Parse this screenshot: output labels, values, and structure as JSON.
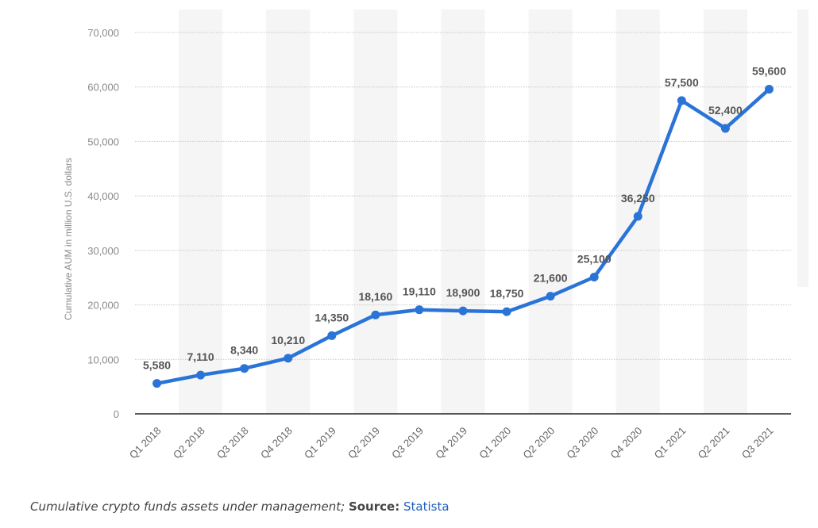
{
  "chart_data": {
    "type": "line",
    "categories": [
      "Q1 2018",
      "Q2 2018",
      "Q3 2018",
      "Q4 2018",
      "Q1 2019",
      "Q2 2019",
      "Q3 2019",
      "Q4 2019",
      "Q1 2020",
      "Q2 2020",
      "Q3 2020",
      "Q4 2020",
      "Q1 2021",
      "Q2 2021",
      "Q3 2021"
    ],
    "series": [
      {
        "values": [
          5580,
          7110,
          8340,
          10210,
          14350,
          18160,
          19110,
          18900,
          18750,
          21600,
          25100,
          36250,
          57500,
          52400,
          59600
        ]
      }
    ],
    "data_labels": [
      "5,580",
      "7,110",
      "8,340",
      "10,210",
      "14,350",
      "18,160",
      "19,110",
      "18,900",
      "18,750",
      "21,600",
      "25,100",
      "36,250",
      "57,500",
      "52,400",
      "59,600"
    ],
    "ylabel": "Cumulative AUM in million U.S. dollars",
    "ylim": [
      0,
      70000
    ],
    "yticks": [
      0,
      10000,
      20000,
      30000,
      40000,
      50000,
      60000,
      70000
    ],
    "ytick_labels": [
      "0",
      "10,000",
      "20,000",
      "30,000",
      "40,000",
      "50,000",
      "60,000",
      "70,000"
    ],
    "grid": true,
    "line_color": "#2a74d8"
  },
  "caption": {
    "description": "Cumulative crypto funds assets under management;",
    "source_label": "Source:",
    "source": "Statista"
  }
}
